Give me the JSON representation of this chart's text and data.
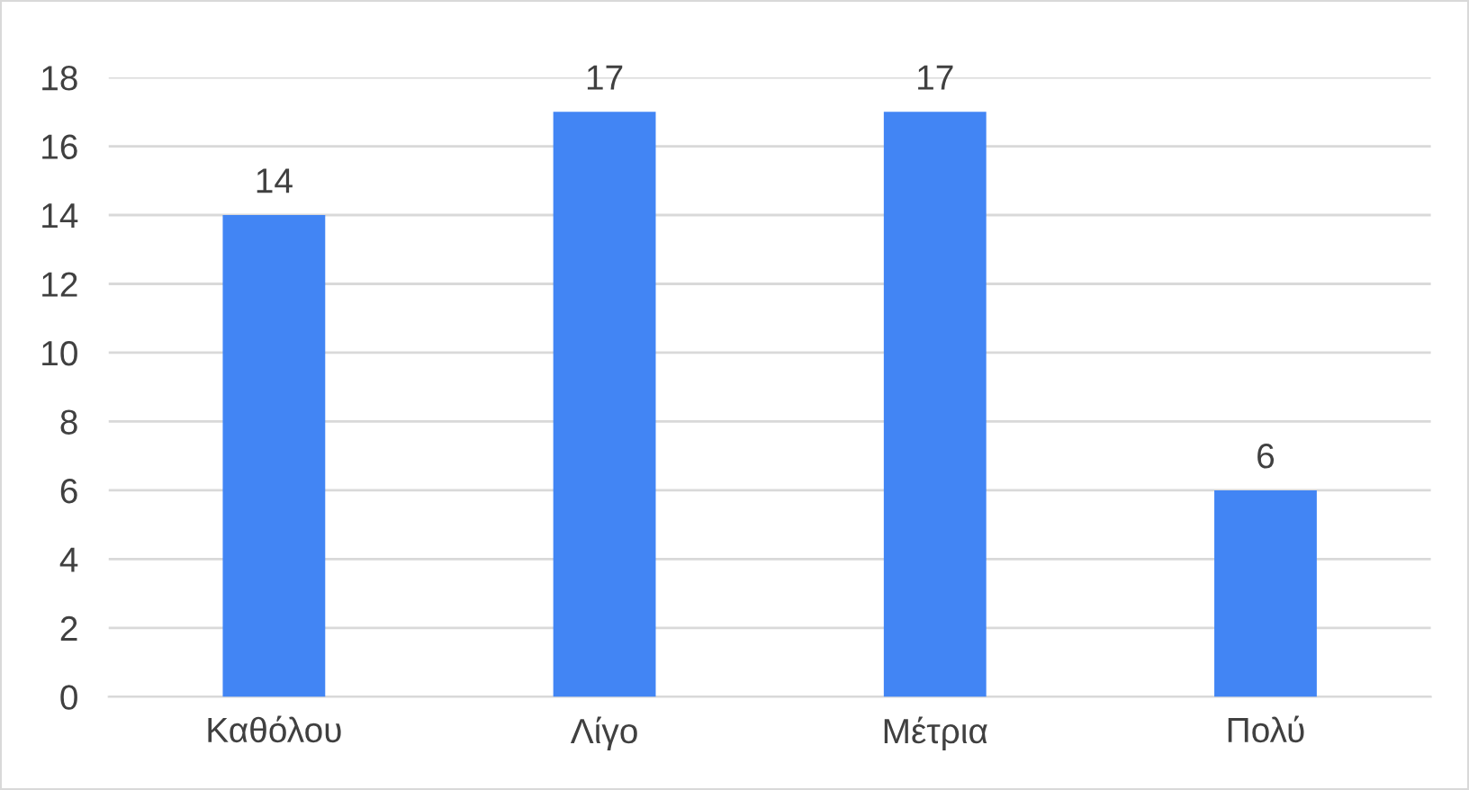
{
  "chart_data": {
    "type": "bar",
    "categories": [
      "Καθόλου",
      "Λίγο",
      "Μέτρια",
      "Πολύ"
    ],
    "values": [
      14,
      17,
      17,
      6
    ],
    "color": "#4285f4",
    "ylim": [
      0,
      18
    ],
    "yticks": [
      0,
      2,
      4,
      6,
      8,
      10,
      12,
      14,
      16,
      18
    ],
    "grid": "y",
    "data_labels": true,
    "legend": false
  }
}
